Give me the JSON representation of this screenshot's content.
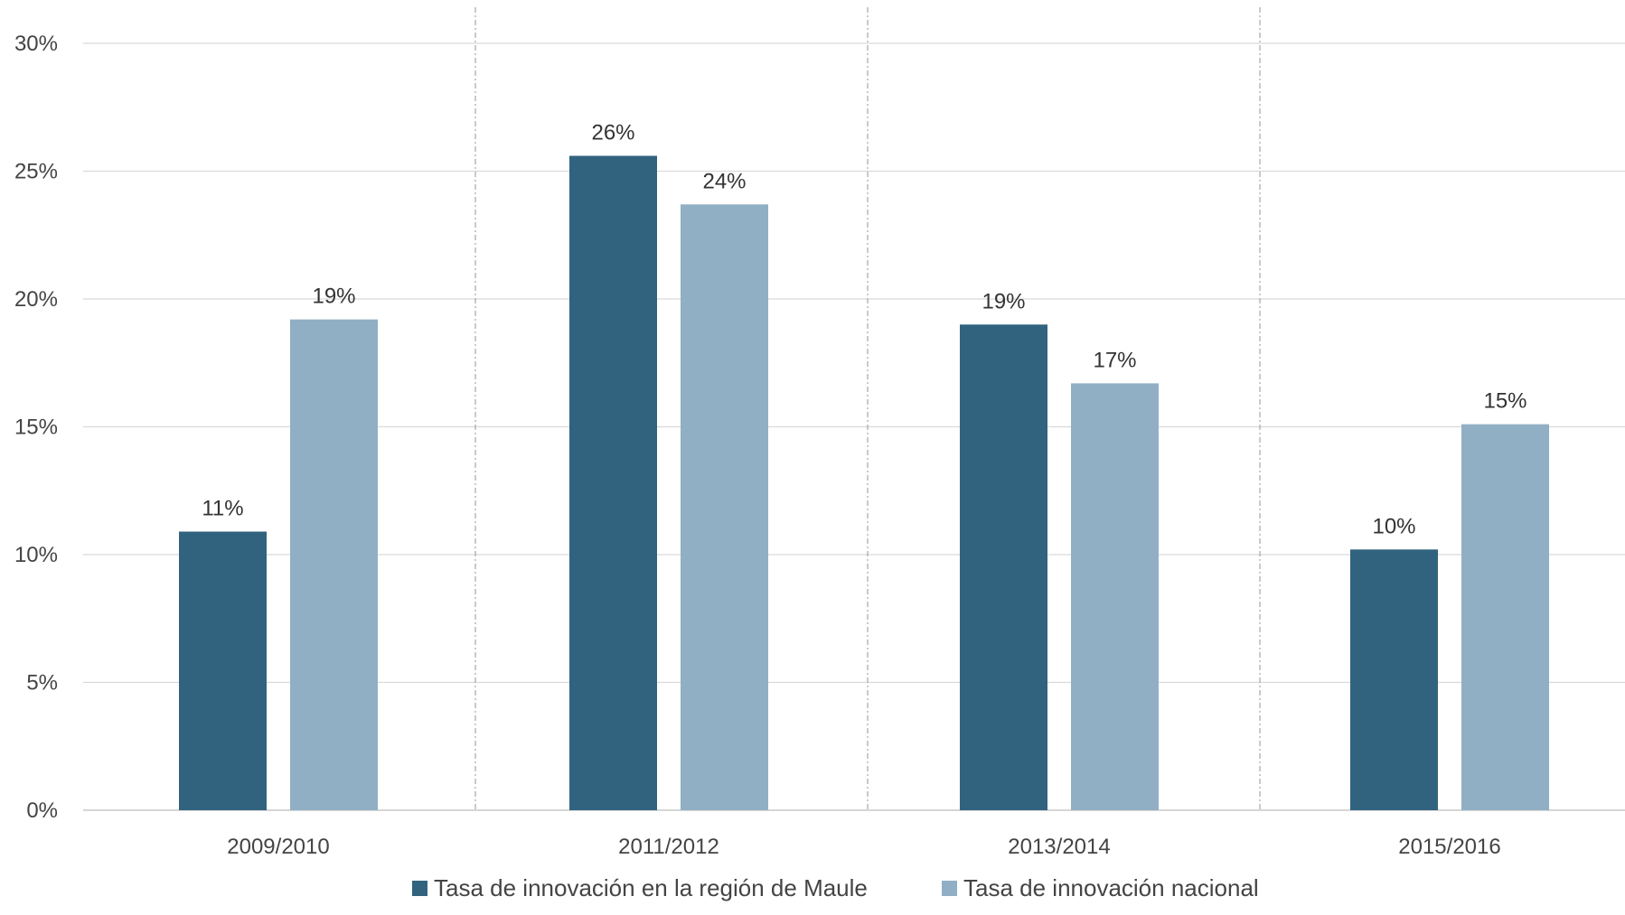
{
  "chart_data": {
    "type": "bar",
    "categories": [
      "2009/2010",
      "2011/2012",
      "2013/2014",
      "2015/2016"
    ],
    "series": [
      {
        "name": "Tasa de innovación en la región de Maule",
        "values": [
          10.9,
          25.6,
          19.0,
          10.2
        ],
        "labels": [
          "11%",
          "26%",
          "19%",
          "10%"
        ],
        "color": "#31637f"
      },
      {
        "name": "Tasa de innovación nacional",
        "values": [
          19.2,
          23.7,
          16.7,
          15.1
        ],
        "labels": [
          "19%",
          "24%",
          "17%",
          "15%"
        ],
        "color": "#91afc4"
      }
    ],
    "yticks": [
      "0%",
      "5%",
      "10%",
      "15%",
      "20%",
      "25%",
      "30%"
    ],
    "ylim": [
      0,
      30
    ],
    "y_unit": "%",
    "grid": true,
    "legend_position": "bottom",
    "title": "",
    "xlabel": "",
    "ylabel": ""
  }
}
